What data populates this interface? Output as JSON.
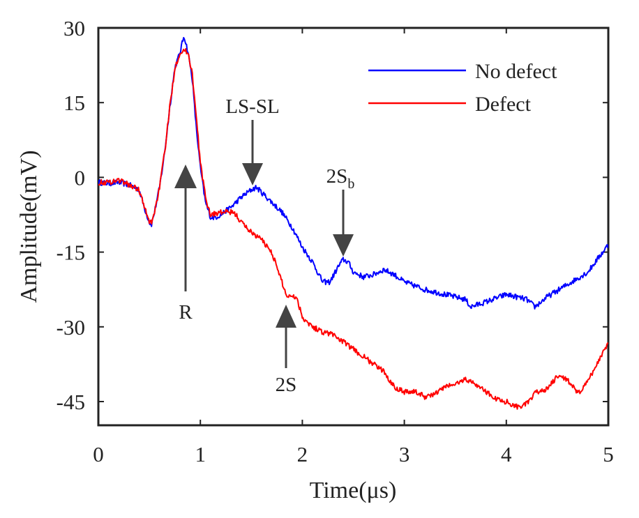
{
  "chart_data": {
    "type": "line",
    "title": "",
    "xlabel": "Time(μs)",
    "ylabel": "Amplitude(mV)",
    "xlim": [
      0,
      5
    ],
    "ylim": [
      -50,
      30
    ],
    "xticks": [
      0,
      1,
      2,
      3,
      4,
      5
    ],
    "xtick_labels": [
      "0",
      "1",
      "2",
      "3",
      "4",
      "5"
    ],
    "yticks": [
      30,
      15,
      0,
      -15,
      -30,
      -45
    ],
    "ytick_labels": [
      "30",
      "15",
      "0",
      "-15",
      "-30",
      "-45"
    ],
    "grid": false,
    "legend_position": "top-right",
    "colors": {
      "no_defect": "#0000ff",
      "defect": "#ff0000",
      "arrow": "#444444",
      "axis": "#222222"
    },
    "series": [
      {
        "name": "No defect",
        "color": "#0000ff",
        "x": [
          0,
          0.1,
          0.2,
          0.3,
          0.4,
          0.45,
          0.5,
          0.52,
          0.55,
          0.6,
          0.65,
          0.7,
          0.75,
          0.8,
          0.84,
          0.88,
          0.92,
          0.96,
          1.0,
          1.05,
          1.1,
          1.15,
          1.2,
          1.3,
          1.4,
          1.5,
          1.55,
          1.6,
          1.7,
          1.8,
          1.9,
          2.0,
          2.1,
          2.2,
          2.27,
          2.35,
          2.4,
          2.45,
          2.5,
          2.6,
          2.7,
          2.8,
          2.9,
          3.0,
          3.2,
          3.4,
          3.6,
          3.65,
          3.8,
          4.0,
          4.2,
          4.28,
          4.4,
          4.6,
          4.8,
          5.0
        ],
        "y": [
          -1,
          -1.2,
          -1,
          -1.5,
          -2.5,
          -6,
          -9,
          -9.5,
          -7,
          -2,
          5,
          14,
          22,
          25,
          28.5,
          25,
          20,
          10,
          2,
          -5,
          -8,
          -8,
          -7.5,
          -6,
          -4,
          -2.5,
          -2,
          -3,
          -5,
          -7,
          -10,
          -14,
          -17,
          -21,
          -21,
          -18,
          -16.5,
          -17,
          -19,
          -20,
          -19.5,
          -18.5,
          -19.5,
          -21,
          -22.5,
          -23.5,
          -24.5,
          -26,
          -25,
          -23.5,
          -24.5,
          -26,
          -24,
          -21.5,
          -19,
          -13.5
        ]
      },
      {
        "name": "Defect",
        "color": "#ff0000",
        "x": [
          0,
          0.1,
          0.2,
          0.3,
          0.4,
          0.45,
          0.5,
          0.52,
          0.55,
          0.6,
          0.65,
          0.7,
          0.75,
          0.8,
          0.84,
          0.88,
          0.92,
          0.96,
          1.0,
          1.05,
          1.1,
          1.2,
          1.3,
          1.35,
          1.4,
          1.5,
          1.6,
          1.7,
          1.75,
          1.8,
          1.85,
          1.9,
          1.95,
          2.0,
          2.1,
          2.2,
          2.3,
          2.4,
          2.5,
          2.6,
          2.7,
          2.8,
          2.9,
          3.0,
          3.1,
          3.2,
          3.3,
          3.4,
          3.5,
          3.6,
          3.7,
          3.8,
          3.9,
          4.0,
          4.1,
          4.2,
          4.3,
          4.4,
          4.5,
          4.6,
          4.7,
          4.8,
          5.0
        ],
        "y": [
          -1,
          -1,
          -0.5,
          -1.5,
          -2.5,
          -6,
          -9,
          -9,
          -7,
          -2,
          5,
          14,
          22,
          25,
          25.5,
          25,
          21,
          12,
          3,
          -4,
          -7.5,
          -7,
          -7,
          -7.5,
          -9,
          -11,
          -12.5,
          -15,
          -18,
          -21,
          -24,
          -23.5,
          -24.5,
          -28,
          -30,
          -31,
          -31.5,
          -33,
          -34.5,
          -36,
          -37.5,
          -39,
          -42,
          -43,
          -43,
          -44,
          -43.5,
          -42,
          -41.5,
          -40.5,
          -41.5,
          -43,
          -44.5,
          -45,
          -46,
          -45.5,
          -43,
          -42.5,
          -40,
          -40.5,
          -43.5,
          -41,
          -33
        ]
      }
    ],
    "annotations": [
      {
        "label": "R",
        "target": [
          0.87,
          -1
        ]
      },
      {
        "label": "LS-SL",
        "target": [
          1.5,
          -0.5
        ]
      },
      {
        "label": "2S",
        "subscript": "b",
        "target": [
          2.4,
          -16
        ]
      },
      {
        "label": "2S",
        "target": [
          1.85,
          -25
        ]
      }
    ]
  }
}
